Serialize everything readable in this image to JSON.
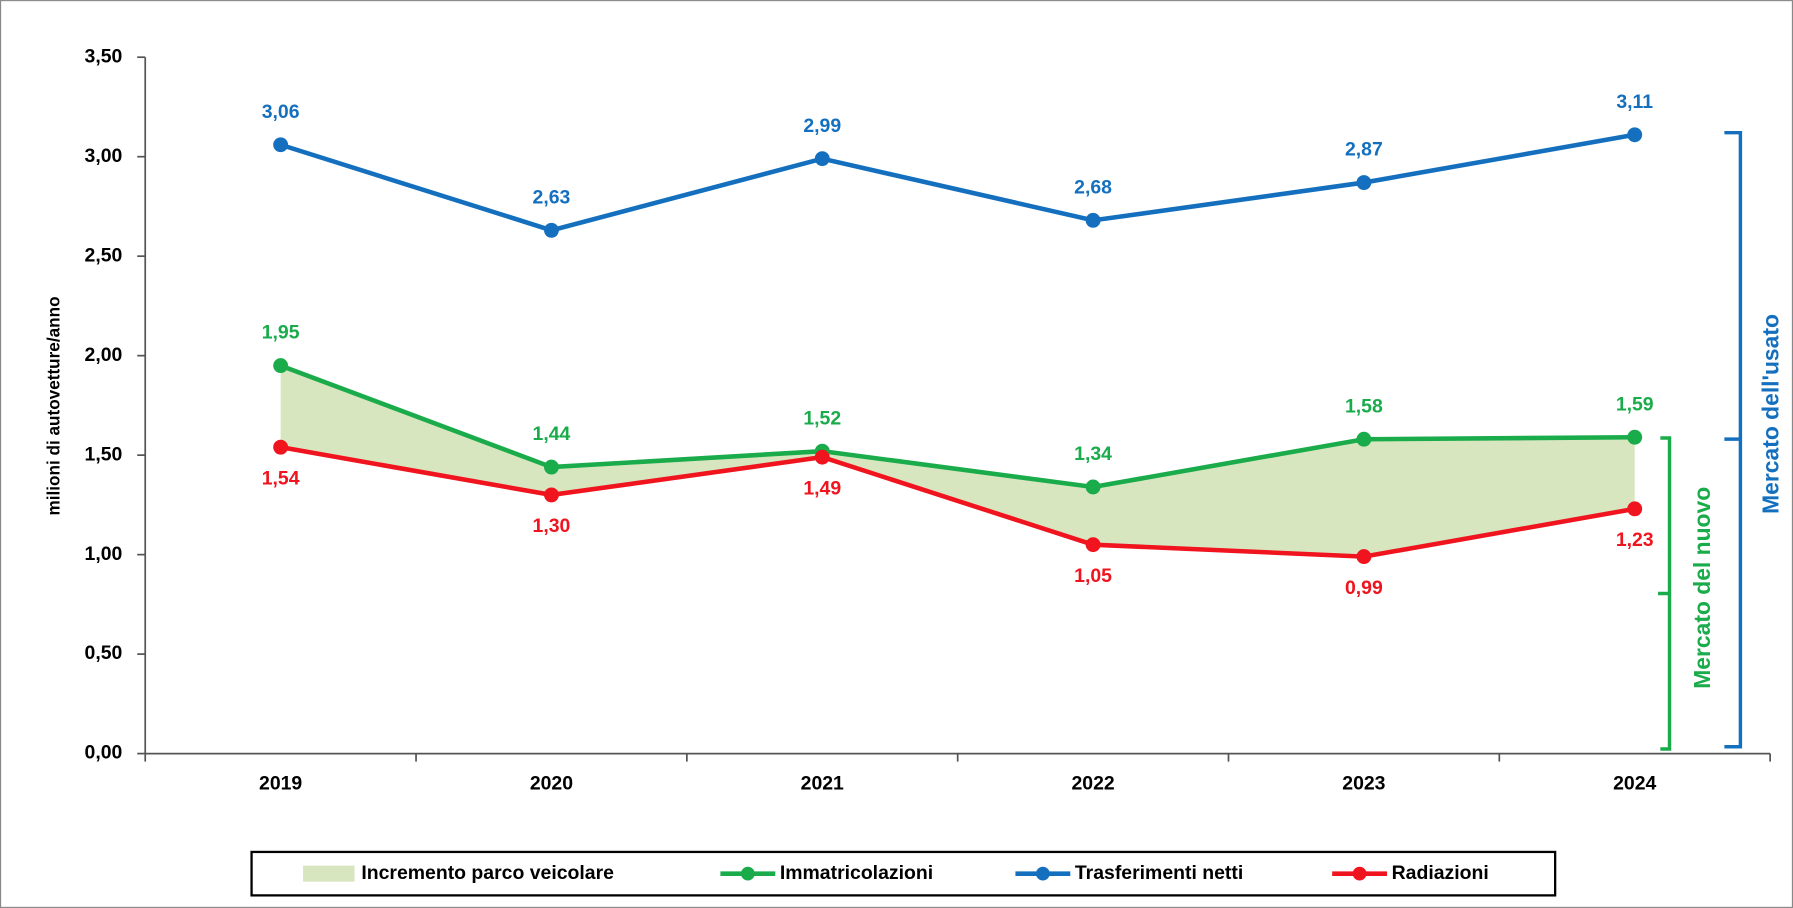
{
  "chart_data": {
    "type": "line",
    "ylabel": "milioni di autovetture/anno",
    "categories": [
      "2019",
      "2020",
      "2021",
      "2022",
      "2023",
      "2024"
    ],
    "series": [
      {
        "name": "Immatricolazioni",
        "color": "#1aab4b",
        "values": [
          1.95,
          1.44,
          1.52,
          1.34,
          1.58,
          1.59
        ],
        "value_labels": [
          "1,95",
          "1,44",
          "1,52",
          "1,34",
          "1,58",
          "1,59"
        ]
      },
      {
        "name": "Trasferimenti netti",
        "color": "#1470be",
        "values": [
          3.06,
          2.63,
          2.99,
          2.68,
          2.87,
          3.11
        ],
        "value_labels": [
          "3,06",
          "2,63",
          "2,99",
          "2,68",
          "2,87",
          "3,11"
        ]
      },
      {
        "name": "Radiazioni",
        "color": "#f0141e",
        "values": [
          1.54,
          1.3,
          1.49,
          1.05,
          0.99,
          1.23
        ],
        "value_labels": [
          "1,54",
          "1,30",
          "1,49",
          "1,05",
          "0,99",
          "1,23"
        ]
      }
    ],
    "area": {
      "name": "Incremento parco veicolare",
      "color": "#d8e6c0"
    },
    "ylim": [
      0,
      3.5
    ],
    "yticks": [
      {
        "value": 0,
        "label": "0,00"
      },
      {
        "value": 0.5,
        "label": "0,50"
      },
      {
        "value": 1,
        "label": "1,00"
      },
      {
        "value": 1.5,
        "label": "1,50"
      },
      {
        "value": 2,
        "label": "2,00"
      },
      {
        "value": 2.5,
        "label": "2,50"
      },
      {
        "value": 3,
        "label": "3,00"
      },
      {
        "value": 3.5,
        "label": "3,50"
      }
    ],
    "annotations": [
      "Mercato del nuovo",
      "Mercato dell'usato"
    ]
  }
}
